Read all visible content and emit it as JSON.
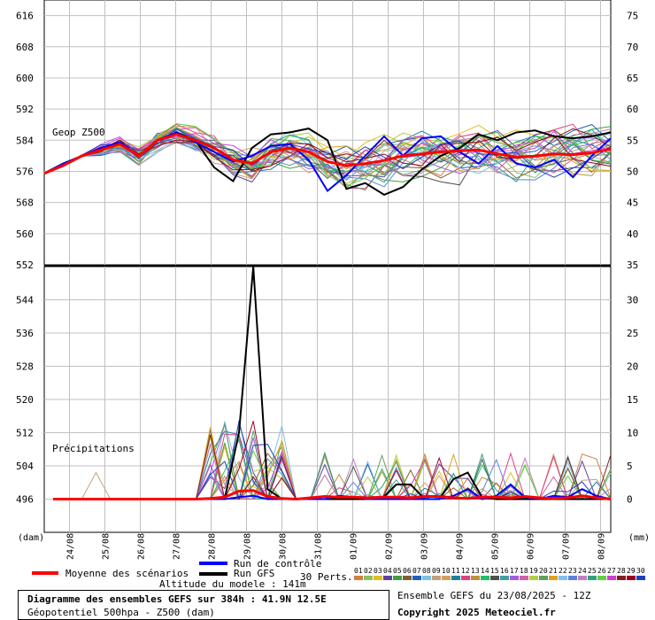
{
  "chart_data": [
    {
      "type": "line",
      "title": "Geop Z500",
      "ylabel_left": "(dam)",
      "ylim": [
        552,
        620
      ],
      "y_ticks_left": [
        616,
        608,
        600,
        592,
        584,
        576,
        568,
        560,
        552
      ],
      "y_ticks_right": [
        75,
        70,
        65,
        60,
        55,
        50,
        45,
        40,
        35
      ],
      "x_ticks": [
        "24/08",
        "25/08",
        "26/08",
        "27/08",
        "28/08",
        "29/08",
        "30/08",
        "31/08",
        "01/09",
        "02/09",
        "03/09",
        "04/09",
        "05/09",
        "06/09",
        "07/09",
        "08/09"
      ],
      "grid": true,
      "series": [
        {
          "name": "Moyenne des scénarios",
          "color": "#ff0000",
          "values": [
            575.5,
            577.5,
            580,
            581.5,
            583,
            580,
            584,
            585.5,
            584,
            582,
            579,
            578,
            581,
            582,
            581,
            578.5,
            577.5,
            578,
            578.8,
            580,
            580.5,
            581,
            581.3,
            581.5,
            580.5,
            579.7,
            579.9,
            580.5,
            580.3,
            580.8,
            581.7
          ]
        },
        {
          "name": "Run de contrôle",
          "color": "#0000ff",
          "values": [
            575.5,
            578,
            580,
            582,
            583.5,
            580,
            584,
            586,
            583.5,
            581,
            578.5,
            580,
            582.5,
            583,
            579,
            571,
            575,
            580,
            585,
            580,
            584.5,
            585,
            581,
            578,
            582.5,
            578,
            577,
            579,
            574.5,
            580,
            584.5
          ]
        },
        {
          "name": "Run GFS",
          "color": "#000000",
          "values": [
            575.5,
            578,
            580,
            582,
            583,
            580,
            584,
            586,
            584,
            577,
            573.5,
            582,
            585.5,
            586,
            587,
            584,
            571.5,
            573,
            570,
            572,
            576.5,
            580,
            582,
            585.5,
            584,
            586,
            586.5,
            585,
            584.5,
            585,
            586
          ]
        }
      ]
    },
    {
      "type": "line",
      "title": "Précipitations",
      "ylabel_right": "(mm)",
      "ylim": [
        -5,
        35
      ],
      "y_ticks_left": [
        552,
        544,
        536,
        528,
        520,
        512,
        504,
        496
      ],
      "y_ticks_right": [
        35,
        30,
        25,
        20,
        15,
        10,
        5,
        0
      ],
      "x_ticks": [
        "24/08",
        "25/08",
        "26/08",
        "27/08",
        "28/08",
        "29/08",
        "30/08",
        "31/08",
        "01/09",
        "02/09",
        "03/09",
        "04/09",
        "05/09",
        "06/09",
        "07/09",
        "08/09"
      ],
      "series": [
        {
          "name": "Moyenne des scénarios",
          "color": "#ff0000",
          "values": [
            0,
            0,
            0,
            0,
            0,
            0,
            0,
            0,
            0,
            0,
            0,
            0.1,
            0.3,
            1.2,
            1.3,
            0.4,
            0.1,
            0,
            0.2,
            0.4,
            0.3,
            0.3,
            0.2,
            0.3,
            0.3,
            0.2,
            0.4,
            0.4,
            0.2,
            0.1,
            0.3,
            0.3,
            0.2,
            0.4,
            0.2,
            0.1,
            0.2,
            0.5,
            0.2,
            0
          ]
        },
        {
          "name": "Run de contrôle",
          "color": "#0000ff",
          "values": [
            0,
            0,
            0,
            0,
            0,
            0,
            0,
            0,
            0,
            0,
            0,
            0,
            0,
            0.3,
            0.5,
            0,
            0,
            0,
            0,
            0,
            0.5,
            0.3,
            0,
            0,
            0,
            0,
            0,
            0,
            0.5,
            1.5,
            0,
            0.5,
            2.2,
            0.3,
            0,
            0.5,
            0.3,
            1.5,
            0.5,
            0
          ]
        },
        {
          "name": "Run GFS",
          "color": "#000000",
          "values": [
            0,
            0,
            0,
            0,
            0,
            0,
            0,
            0,
            0,
            0,
            0,
            0,
            0.1,
            10,
            35,
            1.5,
            0,
            0,
            0,
            0,
            0,
            0,
            0,
            0,
            2.2,
            2.2,
            0,
            0,
            3,
            4,
            0.3,
            0,
            0,
            0,
            0,
            0,
            0,
            0,
            0,
            0
          ]
        }
      ]
    }
  ],
  "labels": {
    "geop": "Geop Z500",
    "precip": "Précipitations",
    "dam": "(dam)",
    "mm": "(mm)"
  },
  "legend": {
    "mean": "Moyenne des scénarios",
    "control": "Run de contrôle",
    "gfs": "Run GFS",
    "perts": "30 Perts.",
    "altitude": "Altitude du modele : 141m",
    "pert_numbers": [
      "01",
      "02",
      "03",
      "04",
      "05",
      "06",
      "07",
      "08",
      "09",
      "10",
      "11",
      "12",
      "13",
      "14",
      "15",
      "16",
      "17",
      "18",
      "19",
      "20",
      "21",
      "22",
      "23",
      "24",
      "25",
      "26",
      "27",
      "28",
      "29",
      "30"
    ],
    "pert_colors": [
      "#d08040",
      "#90c060",
      "#e0c020",
      "#6040a0",
      "#40a040",
      "#806030",
      "#2060c0",
      "#80c0e0",
      "#c0a080",
      "#d0a060",
      "#2080a0",
      "#e04080",
      "#c09040",
      "#20c060",
      "#505050",
      "#40a0a0",
      "#a060e0",
      "#d060a0",
      "#b0d040",
      "#60a060",
      "#e0a020",
      "#80c0f0",
      "#6080e0",
      "#c080c0",
      "#30a080",
      "#60d040",
      "#d040d0",
      "#802020",
      "#a00020",
      "#2040c0"
    ]
  },
  "caption": {
    "line1": "Diagramme des ensembles GEFS sur 384h : 41.9N 12.5E",
    "line2": "Géopotentiel 500hpa - Z500 (dam)"
  },
  "info": {
    "run": "Ensemble GEFS du 23/08/2025 - 12Z",
    "copyright": "Copyright 2025 Meteociel.fr"
  }
}
